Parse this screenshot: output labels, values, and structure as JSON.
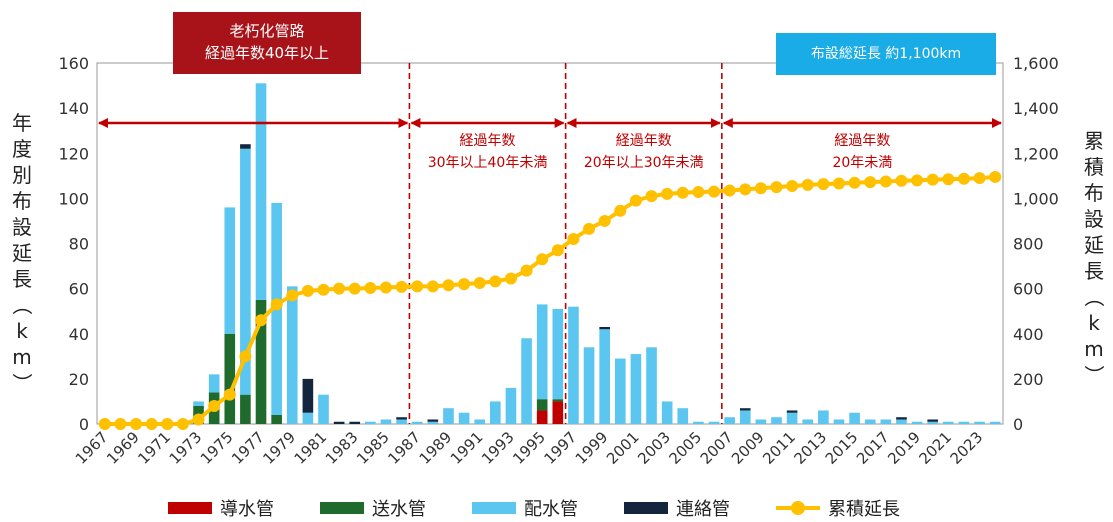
{
  "chart_data": {
    "type": "bar",
    "stacked": true,
    "categories": [
      "1967",
      "1968",
      "1969",
      "1970",
      "1971",
      "1972",
      "1973",
      "1974",
      "1975",
      "1976",
      "1977",
      "1978",
      "1979",
      "1980",
      "1981",
      "1982",
      "1983",
      "1984",
      "1985",
      "1986",
      "1987",
      "1988",
      "1989",
      "1990",
      "1991",
      "1992",
      "1993",
      "1994",
      "1995",
      "1996",
      "1997",
      "1998",
      "1999",
      "2000",
      "2001",
      "2002",
      "2003",
      "2004",
      "2005",
      "2006",
      "2007",
      "2008",
      "2009",
      "2010",
      "2011",
      "2012",
      "2013",
      "2014",
      "2015",
      "2016",
      "2017",
      "2018",
      "2019",
      "2020",
      "2021",
      "2022",
      "2023",
      "2024"
    ],
    "series": [
      {
        "name": "導水管",
        "color": "#c00000",
        "values": [
          0,
          0,
          0,
          0,
          0,
          0,
          0,
          0,
          0,
          0,
          0,
          0,
          0,
          0,
          0,
          0,
          0,
          0,
          0,
          0,
          0,
          0,
          0,
          0,
          0,
          0,
          0,
          0,
          6,
          10,
          0,
          0,
          0,
          0,
          0,
          0,
          0,
          0,
          0,
          0,
          0,
          0,
          0,
          0,
          0,
          0,
          0,
          0,
          0,
          0,
          0,
          0,
          0,
          0,
          0,
          0,
          0,
          0
        ]
      },
      {
        "name": "送水管",
        "color": "#1e6b2d",
        "values": [
          0,
          0,
          0,
          0,
          0,
          0,
          8,
          14,
          40,
          13,
          55,
          4,
          0,
          0,
          0,
          0,
          0,
          0,
          0,
          0,
          0,
          0,
          0,
          0,
          0,
          0,
          0,
          0,
          5,
          1,
          0,
          0,
          0,
          0,
          0,
          0,
          0,
          0,
          0,
          0,
          0,
          0,
          0,
          0,
          0,
          0,
          0,
          0,
          0,
          0,
          0,
          0,
          0,
          0,
          0,
          0,
          0,
          0
        ]
      },
      {
        "name": "配水管",
        "color": "#5bc6ef",
        "values": [
          0,
          0,
          0,
          0,
          0,
          0,
          2,
          8,
          56,
          109,
          96,
          94,
          61,
          5,
          13,
          0,
          0,
          1,
          2,
          2,
          1,
          1,
          7,
          5,
          2,
          10,
          16,
          38,
          42,
          40,
          52,
          34,
          42,
          29,
          31,
          34,
          10,
          7,
          1,
          1,
          3,
          6,
          2,
          3,
          5,
          2,
          6,
          2,
          5,
          2,
          2,
          2,
          1,
          1,
          1,
          1,
          1,
          1
        ]
      },
      {
        "name": "連絡管",
        "color": "#13263d",
        "values": [
          0,
          0,
          0,
          0,
          0,
          0,
          0,
          0,
          0,
          2,
          0,
          0,
          0,
          15,
          0,
          1,
          1,
          0,
          0,
          1,
          0,
          1,
          0,
          0,
          0,
          0,
          0,
          0,
          0,
          0,
          0,
          0,
          1,
          0,
          0,
          0,
          0,
          0,
          0,
          0,
          0,
          1,
          0,
          0,
          1,
          0,
          0,
          0,
          0,
          0,
          0,
          1,
          0,
          1,
          0,
          0,
          0,
          0
        ]
      }
    ],
    "line": {
      "name": "累積延長",
      "color": "#ffc000",
      "values": [
        0,
        0,
        0,
        0,
        0,
        0,
        20,
        80,
        130,
        300,
        460,
        530,
        570,
        590,
        595,
        600,
        600,
        603,
        605,
        608,
        610,
        610,
        615,
        620,
        625,
        632,
        645,
        680,
        730,
        770,
        820,
        865,
        900,
        945,
        990,
        1010,
        1020,
        1025,
        1028,
        1030,
        1035,
        1040,
        1045,
        1050,
        1055,
        1060,
        1063,
        1066,
        1069,
        1072,
        1075,
        1078,
        1080,
        1083,
        1085,
        1087,
        1090,
        1095
      ]
    },
    "x_tick_labels": [
      "1967",
      "1969",
      "1971",
      "1973",
      "1975",
      "1977",
      "1979",
      "1981",
      "1983",
      "1985",
      "1987",
      "1989",
      "1991",
      "1993",
      "1995",
      "1997",
      "1999",
      "2001",
      "2003",
      "2005",
      "2007",
      "2009",
      "2011",
      "2013",
      "2015",
      "2017",
      "2019",
      "2021",
      "2023"
    ],
    "y_left": {
      "label": "年度別布設延長（km）",
      "range": [
        0,
        160
      ],
      "ticks": [
        "0",
        "20",
        "40",
        "60",
        "80",
        "100",
        "120",
        "140",
        "160"
      ]
    },
    "y_right": {
      "label": "累積布設延長（km）",
      "range": [
        0,
        1600
      ],
      "ticks": [
        "0",
        "200",
        "400",
        "600",
        "800",
        "1,000",
        "1,200",
        "1,400",
        "1,600"
      ]
    },
    "grid": false,
    "legend_position": "bottom",
    "dividers": [
      "1987",
      "1997",
      "2007"
    ],
    "periods": [
      {
        "from": "1967",
        "to": "1987",
        "lines": []
      },
      {
        "from": "1987",
        "to": "1997",
        "lines": [
          "経過年数",
          "30年以上40年未満"
        ]
      },
      {
        "from": "1997",
        "to": "2007",
        "lines": [
          "経過年数",
          "20年以上30年未満"
        ]
      },
      {
        "from": "2007",
        "to": "2024",
        "lines": [
          "経過年数",
          "20年未満"
        ]
      }
    ],
    "annotation_old": {
      "lines": [
        "老朽化管路",
        "経過年数40年以上"
      ],
      "color": "#a8131a"
    },
    "annotation_total": {
      "text": "布設総延長 約1,100km",
      "color": "#1aace6"
    }
  }
}
